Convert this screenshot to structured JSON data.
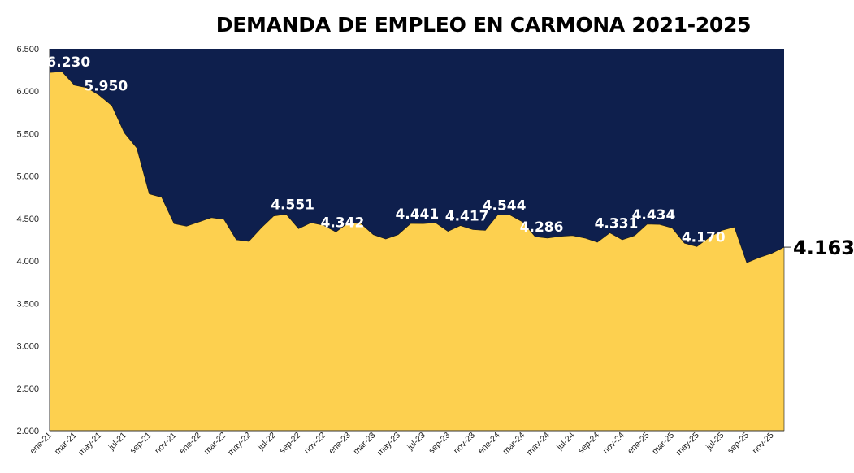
{
  "chart_data": {
    "type": "area",
    "title": "DEMANDA DE EMPLEO EN CARMONA 2021-2025",
    "xlabel": "",
    "ylabel": "",
    "ylim": [
      2000,
      6500
    ],
    "y_ticks": [
      "2.000",
      "2.500",
      "3.000",
      "3.500",
      "4.000",
      "4.500",
      "5.000",
      "5.500",
      "6.000",
      "6.500"
    ],
    "y_tick_values": [
      2000,
      2500,
      3000,
      3500,
      4000,
      4500,
      5000,
      5500,
      6000,
      6500
    ],
    "grid": false,
    "colors": {
      "area": "#FDD04F",
      "background": "#0E1F4D",
      "label": "#FFFFFF",
      "last_label": "#000000"
    },
    "x": [
      "ene-21",
      "feb-21",
      "mar-21",
      "abr-21",
      "may-21",
      "jun-21",
      "jul-21",
      "ago-21",
      "sep-21",
      "oct-21",
      "nov-21",
      "dic-21",
      "ene-22",
      "feb-22",
      "mar-22",
      "abr-22",
      "may-22",
      "jun-22",
      "jul-22",
      "ago-22",
      "sep-22",
      "oct-22",
      "nov-22",
      "dic-22",
      "ene-23",
      "feb-23",
      "mar-23",
      "abr-23",
      "may-23",
      "jun-23",
      "jul-23",
      "ago-23",
      "sep-23",
      "oct-23",
      "nov-23",
      "dic-23",
      "ene-24",
      "feb-24",
      "mar-24",
      "abr-24",
      "may-24",
      "jun-24",
      "jul-24",
      "ago-24",
      "sep-24",
      "oct-24",
      "nov-24",
      "dic-24",
      "ene-25",
      "feb-25",
      "mar-25",
      "abr-25",
      "may-25",
      "jun-25",
      "jul-25",
      "ago-25",
      "sep-25",
      "oct-25",
      "nov-25",
      "dic-25"
    ],
    "x_tick_labels": [
      "ene-21",
      "mar-21",
      "may-21",
      "jul-21",
      "sep-21",
      "nov-21",
      "ene-22",
      "mar-22",
      "may-22",
      "jul-22",
      "sep-22",
      "nov-22",
      "ene-23",
      "mar-23",
      "may-23",
      "jul-23",
      "sep-23",
      "nov-23",
      "ene-24",
      "mar-24",
      "may-24",
      "jul-24",
      "sep-24",
      "nov-24",
      "ene-25",
      "mar-25",
      "may-25",
      "jul-25",
      "sep-25",
      "nov-25"
    ],
    "values": [
      6220,
      6230,
      6070,
      6040,
      5950,
      5830,
      5510,
      5330,
      4790,
      4750,
      4440,
      4410,
      4460,
      4510,
      4490,
      4250,
      4230,
      4390,
      4530,
      4551,
      4380,
      4450,
      4420,
      4342,
      4450,
      4440,
      4310,
      4260,
      4310,
      4441,
      4440,
      4450,
      4350,
      4417,
      4370,
      4360,
      4544,
      4540,
      4460,
      4286,
      4270,
      4290,
      4300,
      4270,
      4220,
      4331,
      4250,
      4300,
      4434,
      4430,
      4390,
      4210,
      4170,
      4280,
      4360,
      4400,
      3980,
      4040,
      4090,
      4163
    ],
    "data_labels": [
      {
        "x": "feb-21",
        "text": "6.230"
      },
      {
        "x": "may-21",
        "text": "5.950"
      },
      {
        "x": "ago-22",
        "text": "4.551"
      },
      {
        "x": "dic-22",
        "text": "4.342"
      },
      {
        "x": "jun-23",
        "text": "4.441"
      },
      {
        "x": "oct-23",
        "text": "4.417"
      },
      {
        "x": "ene-24",
        "text": "4.544"
      },
      {
        "x": "abr-24",
        "text": "4.286"
      },
      {
        "x": "oct-24",
        "text": "4.331"
      },
      {
        "x": "ene-25",
        "text": "4.434"
      },
      {
        "x": "may-25",
        "text": "4.170"
      }
    ],
    "last_label": {
      "x": "dic-25",
      "text": "4.163"
    }
  }
}
